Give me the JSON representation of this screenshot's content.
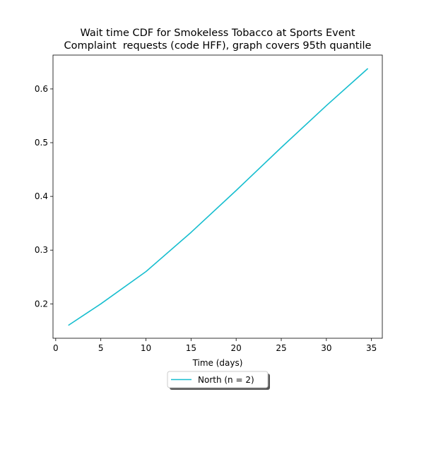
{
  "chart_data": {
    "type": "line",
    "title": "Wait time CDF for Smokeless Tobacco at Sports Event\nComplaint  requests (code HFF), graph covers 95th quantile",
    "xlabel": "Time (days)",
    "ylabel": "",
    "xlim": [
      -0.3,
      36.2
    ],
    "ylim": [
      0.136,
      0.663
    ],
    "xticks": [
      0,
      5,
      10,
      15,
      20,
      25,
      30,
      35
    ],
    "yticks": [
      0.2,
      0.3,
      0.4,
      0.5,
      0.6
    ],
    "grid": false,
    "legend_position": "below plot, centered",
    "series": [
      {
        "name": "North (n = 2)",
        "color": "#17becf",
        "x": [
          1.4,
          5,
          10,
          15,
          20,
          25,
          30,
          34.6
        ],
        "y": [
          0.16,
          0.2,
          0.26,
          0.333,
          0.411,
          0.491,
          0.569,
          0.638
        ]
      }
    ]
  }
}
